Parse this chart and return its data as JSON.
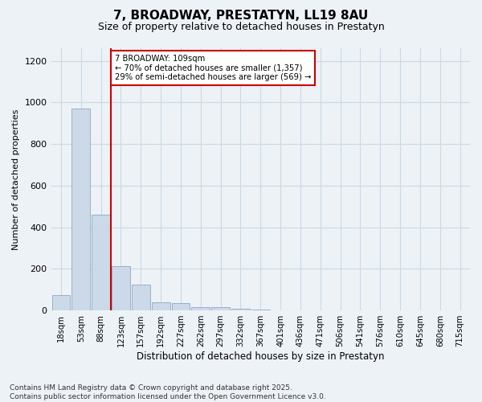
{
  "title": "7, BROADWAY, PRESTATYN, LL19 8AU",
  "subtitle": "Size of property relative to detached houses in Prestatyn",
  "xlabel": "Distribution of detached houses by size in Prestatyn",
  "ylabel": "Number of detached properties",
  "footer": "Contains HM Land Registry data © Crown copyright and database right 2025.\nContains public sector information licensed under the Open Government Licence v3.0.",
  "bin_labels": [
    "18sqm",
    "53sqm",
    "88sqm",
    "123sqm",
    "157sqm",
    "192sqm",
    "227sqm",
    "262sqm",
    "297sqm",
    "332sqm",
    "367sqm",
    "401sqm",
    "436sqm",
    "471sqm",
    "506sqm",
    "541sqm",
    "576sqm",
    "610sqm",
    "645sqm",
    "680sqm",
    "715sqm"
  ],
  "bar_values": [
    75,
    970,
    460,
    215,
    125,
    40,
    35,
    15,
    15,
    10,
    5,
    0,
    0,
    0,
    0,
    0,
    0,
    0,
    0,
    0,
    0
  ],
  "bar_color": "#ccd9e8",
  "bar_edge_color": "#8aaabf",
  "ylim": [
    0,
    1260
  ],
  "yticks": [
    0,
    200,
    400,
    600,
    800,
    1000,
    1200
  ],
  "red_line_color": "#cc0000",
  "annotation_text": "7 BROADWAY: 109sqm\n← 70% of detached houses are smaller (1,357)\n29% of semi-detached houses are larger (569) →",
  "annotation_box_color": "#ffffff",
  "annotation_box_edge": "#cc0000",
  "grid_color": "#ccd8e4",
  "background_color": "#edf2f7"
}
